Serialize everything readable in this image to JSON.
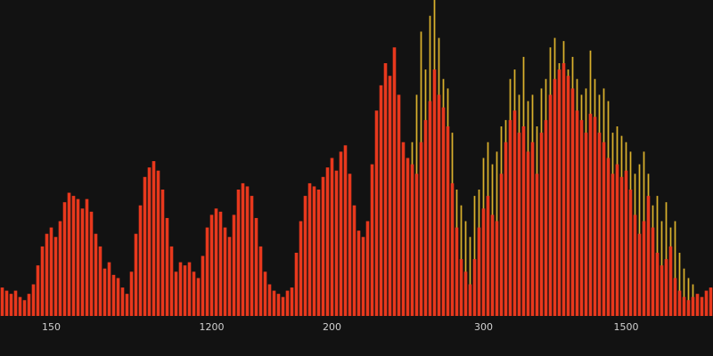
{
  "chart_data": {
    "type": "bar",
    "categories": [
      null,
      null,
      null,
      null,
      null,
      null,
      null,
      null,
      null,
      null,
      null,
      "150",
      null,
      null,
      null,
      null,
      null,
      null,
      null,
      null,
      null,
      null,
      null,
      null,
      null,
      null,
      null,
      null,
      null,
      null,
      null,
      null,
      null,
      null,
      null,
      null,
      null,
      null,
      null,
      null,
      null,
      null,
      null,
      null,
      null,
      null,
      null,
      "1200",
      null,
      null,
      null,
      null,
      null,
      null,
      null,
      null,
      null,
      null,
      null,
      null,
      null,
      null,
      null,
      null,
      null,
      null,
      null,
      null,
      null,
      null,
      null,
      null,
      null,
      null,
      "200",
      null,
      null,
      null,
      null,
      null,
      null,
      null,
      null,
      null,
      null,
      null,
      null,
      null,
      null,
      null,
      null,
      null,
      null,
      null,
      null,
      null,
      null,
      null,
      null,
      null,
      null,
      null,
      null,
      null,
      null,
      null,
      null,
      null,
      "300",
      null,
      null,
      null,
      null,
      null,
      null,
      null,
      null,
      null,
      null,
      null,
      null,
      null,
      null,
      null,
      null,
      null,
      null,
      null,
      null,
      null,
      null,
      null,
      null,
      null,
      null,
      null,
      null,
      null,
      null,
      null,
      "1500",
      null,
      null,
      null,
      null,
      null,
      null,
      null,
      null,
      null,
      null,
      null,
      null,
      null,
      null,
      null,
      null,
      null,
      null,
      null
    ],
    "series": [
      {
        "color": "#d9b02c",
        "values": [
          null,
          null,
          null,
          null,
          null,
          null,
          null,
          null,
          null,
          null,
          null,
          null,
          null,
          null,
          null,
          null,
          null,
          null,
          null,
          null,
          null,
          null,
          null,
          null,
          null,
          null,
          null,
          null,
          null,
          null,
          null,
          null,
          null,
          null,
          null,
          null,
          null,
          null,
          null,
          null,
          null,
          null,
          null,
          null,
          null,
          null,
          null,
          null,
          null,
          null,
          null,
          null,
          null,
          null,
          null,
          null,
          null,
          null,
          null,
          null,
          null,
          null,
          null,
          null,
          null,
          null,
          null,
          null,
          null,
          null,
          null,
          null,
          null,
          null,
          null,
          null,
          null,
          null,
          null,
          null,
          null,
          null,
          null,
          null,
          null,
          null,
          null,
          null,
          null,
          null,
          null,
          null,
          55,
          70,
          90,
          78,
          95,
          100,
          88,
          75,
          72,
          58,
          40,
          35,
          30,
          25,
          38,
          40,
          50,
          55,
          48,
          52,
          60,
          62,
          75,
          78,
          70,
          82,
          68,
          70,
          60,
          72,
          75,
          85,
          88,
          80,
          87,
          78,
          82,
          75,
          70,
          72,
          84,
          75,
          70,
          72,
          68,
          58,
          60,
          57,
          55,
          52,
          45,
          48,
          52,
          45,
          35,
          38,
          30,
          36,
          28,
          30,
          20,
          15,
          12,
          10,
          null,
          null,
          null,
          null
        ]
      },
      {
        "color": "#e8381d",
        "values": [
          9,
          8,
          7,
          8,
          6,
          5,
          7,
          10,
          16,
          22,
          26,
          28,
          25,
          30,
          36,
          39,
          38,
          37,
          34,
          37,
          33,
          26,
          22,
          15,
          17,
          13,
          12,
          9,
          7,
          14,
          26,
          35,
          44,
          47,
          49,
          46,
          40,
          31,
          22,
          14,
          17,
          16,
          17,
          14,
          12,
          19,
          28,
          32,
          34,
          33,
          28,
          25,
          32,
          40,
          42,
          41,
          38,
          31,
          22,
          14,
          10,
          8,
          7,
          6,
          8,
          9,
          20,
          30,
          38,
          42,
          41,
          40,
          44,
          47,
          50,
          46,
          52,
          54,
          45,
          35,
          27,
          25,
          30,
          48,
          65,
          73,
          80,
          76,
          85,
          70,
          55,
          50,
          48,
          45,
          55,
          62,
          68,
          78,
          70,
          66,
          60,
          42,
          28,
          18,
          14,
          10,
          18,
          28,
          34,
          38,
          32,
          30,
          45,
          55,
          62,
          65,
          58,
          60,
          52,
          55,
          45,
          58,
          62,
          70,
          75,
          78,
          80,
          76,
          72,
          65,
          62,
          58,
          64,
          63,
          58,
          55,
          50,
          45,
          48,
          44,
          46,
          40,
          32,
          26,
          30,
          38,
          28,
          20,
          16,
          18,
          22,
          12,
          8,
          6,
          5,
          6,
          7,
          6,
          8,
          9
        ]
      }
    ],
    "ylim": [
      0,
      100
    ]
  }
}
